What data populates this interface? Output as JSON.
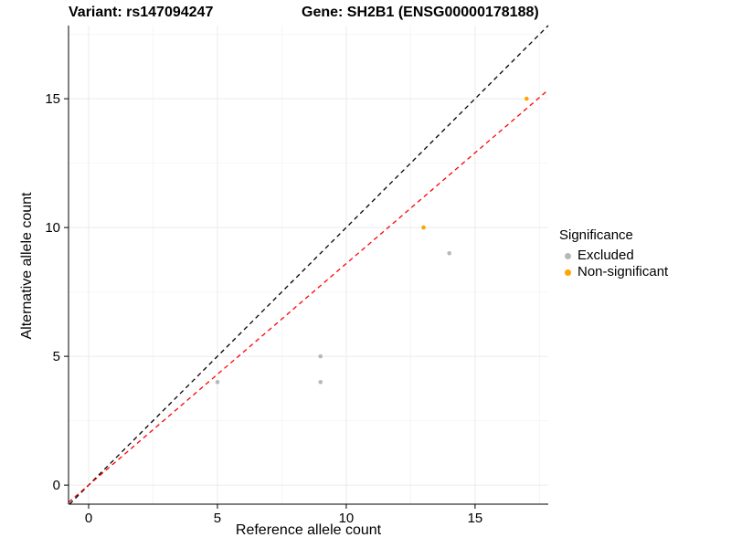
{
  "header": {
    "title_left": "Variant: rs147094247",
    "title_right": "Gene: SH2B1 (ENSG00000178188)"
  },
  "chart_data": {
    "type": "scatter",
    "title": "Variant: rs147094247 — Gene: SH2B1 (ENSG00000178188)",
    "xlabel": "Reference allele count",
    "ylabel": "Alternative allele count",
    "xlim": [
      -0.78,
      17.84
    ],
    "ylim": [
      -0.74,
      17.84
    ],
    "xticks": [
      0,
      5,
      10,
      15
    ],
    "yticks": [
      0,
      5,
      10,
      15
    ],
    "grid": true,
    "series": [
      {
        "name": "Excluded",
        "color": "#b8b8b8",
        "points": [
          [
            5,
            4
          ],
          [
            9,
            5
          ],
          [
            9,
            4
          ],
          [
            14,
            9
          ]
        ]
      },
      {
        "name": "Non-significant",
        "color": "#FFA500",
        "points": [
          [
            13,
            10
          ],
          [
            17,
            15
          ]
        ]
      }
    ],
    "lines": [
      {
        "name": "identity-line",
        "slope": 1.0,
        "intercept": 0,
        "color": "#000000",
        "dash": "5,4"
      },
      {
        "name": "fit-line",
        "slope": 0.86,
        "intercept": 0,
        "color": "#FF0000",
        "dash": "5,4"
      }
    ],
    "legend": {
      "title": "Significance",
      "position": "right",
      "items": [
        {
          "label": "Excluded",
          "color": "#b8b8b8"
        },
        {
          "label": "Non-significant",
          "color": "#FFA500"
        }
      ]
    }
  },
  "colors": {
    "grid_major": "#ebebeb",
    "grid_minor": "#f6f6f6",
    "axis": "#000000",
    "text": "#000000"
  }
}
